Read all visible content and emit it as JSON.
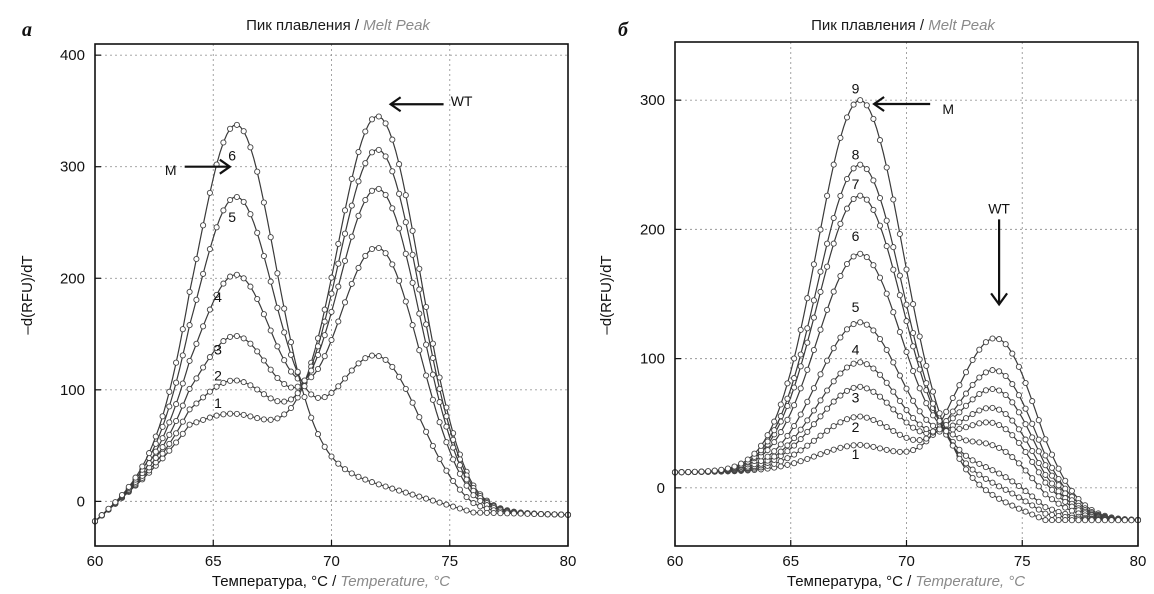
{
  "chart_data": [
    {
      "panel_label": "a",
      "type": "line",
      "title": "Пик плавления",
      "title_secondary": "Melt Peak",
      "xlabel": "Температура, °C",
      "xlabel_secondary": "Temperature, °C",
      "ylabel": "–d(RFU)/dT",
      "xlim": [
        60,
        80
      ],
      "ylim": [
        -40,
        410
      ],
      "xticks": [
        60,
        65,
        70,
        75,
        80
      ],
      "yticks": [
        0,
        100,
        200,
        300,
        400
      ],
      "grid": true,
      "series": [
        {
          "label": "1",
          "peaks": [
            {
              "center": 66.0,
              "amp": 30,
              "sigma": 1.6
            },
            {
              "center": 72.0,
              "amp": 330,
              "sigma": 1.75
            }
          ]
        },
        {
          "label": "2",
          "peaks": [
            {
              "center": 66.0,
              "amp": 60,
              "sigma": 1.6
            },
            {
              "center": 72.0,
              "amp": 300,
              "sigma": 1.75
            }
          ]
        },
        {
          "label": "3",
          "peaks": [
            {
              "center": 66.0,
              "amp": 100,
              "sigma": 1.6
            },
            {
              "center": 72.0,
              "amp": 265,
              "sigma": 1.75
            }
          ]
        },
        {
          "label": "4",
          "peaks": [
            {
              "center": 66.0,
              "amp": 155,
              "sigma": 1.6
            },
            {
              "center": 72.0,
              "amp": 212,
              "sigma": 1.75
            }
          ]
        },
        {
          "label": "5",
          "peaks": [
            {
              "center": 66.0,
              "amp": 225,
              "sigma": 1.6
            },
            {
              "center": 72.0,
              "amp": 115,
              "sigma": 1.75
            }
          ]
        },
        {
          "label": "6",
          "peaks": [
            {
              "center": 66.0,
              "amp": 290,
              "sigma": 1.6
            },
            {
              "center": 72.0,
              "amp": 0,
              "sigma": 1.75
            }
          ]
        }
      ],
      "baseline": {
        "x_points": [
          60,
          64,
          68,
          72,
          76,
          80
        ],
        "y_points": [
          -18,
          55,
          40,
          15,
          -10,
          -12
        ]
      },
      "labels": [
        {
          "text": "1",
          "x": 65.2,
          "y": 88
        },
        {
          "text": "2",
          "x": 65.2,
          "y": 113
        },
        {
          "text": "3",
          "x": 65.2,
          "y": 136
        },
        {
          "text": "4",
          "x": 65.2,
          "y": 183
        },
        {
          "text": "5",
          "x": 65.8,
          "y": 255
        },
        {
          "text": "6",
          "x": 65.8,
          "y": 310
        }
      ],
      "annotations": [
        {
          "text": "M",
          "x": 63.2,
          "y": 298,
          "arrow_to": [
            65.7,
            300
          ],
          "direction": "right"
        },
        {
          "text": "WT",
          "x": 75.5,
          "y": 360,
          "arrow_to": [
            72.5,
            356
          ],
          "direction": "left"
        }
      ]
    },
    {
      "panel_label": "б",
      "type": "line",
      "title": "Пик плавления",
      "title_secondary": "Melt Peak",
      "xlabel": "Температура, °C",
      "xlabel_secondary": "Temperature, °C",
      "ylabel": "–d(RFU)/dT",
      "xlim": [
        60,
        80
      ],
      "ylim": [
        -45,
        345
      ],
      "xticks": [
        60,
        65,
        70,
        75,
        80
      ],
      "yticks": [
        0,
        100,
        200,
        300
      ],
      "grid": true,
      "series": [
        {
          "label": "1",
          "peaks": [
            {
              "center": 68.0,
              "amp": 20,
              "sigma": 1.85
            },
            {
              "center": 74.0,
              "amp": 125,
              "sigma": 1.7
            }
          ]
        },
        {
          "label": "2",
          "peaks": [
            {
              "center": 68.0,
              "amp": 42,
              "sigma": 1.85
            },
            {
              "center": 74.0,
              "amp": 100,
              "sigma": 1.7
            }
          ]
        },
        {
          "label": "3",
          "peaks": [
            {
              "center": 68.0,
              "amp": 65,
              "sigma": 1.85
            },
            {
              "center": 74.0,
              "amp": 85,
              "sigma": 1.7
            }
          ]
        },
        {
          "label": "4",
          "peaks": [
            {
              "center": 68.0,
              "amp": 84,
              "sigma": 1.85
            },
            {
              "center": 74.0,
              "amp": 70,
              "sigma": 1.7
            }
          ]
        },
        {
          "label": "5",
          "peaks": [
            {
              "center": 68.0,
              "amp": 115,
              "sigma": 1.85
            },
            {
              "center": 74.0,
              "amp": 58,
              "sigma": 1.7
            }
          ]
        },
        {
          "label": "6",
          "peaks": [
            {
              "center": 68.0,
              "amp": 168,
              "sigma": 1.85
            },
            {
              "center": 74.0,
              "amp": 40,
              "sigma": 1.7
            }
          ]
        },
        {
          "label": "7",
          "peaks": [
            {
              "center": 68.0,
              "amp": 213,
              "sigma": 1.85
            },
            {
              "center": 74.0,
              "amp": 20,
              "sigma": 1.7
            }
          ]
        },
        {
          "label": "8",
          "peaks": [
            {
              "center": 68.0,
              "amp": 237,
              "sigma": 1.85
            },
            {
              "center": 74.0,
              "amp": 10,
              "sigma": 1.7
            }
          ]
        },
        {
          "label": "9",
          "peaks": [
            {
              "center": 68.0,
              "amp": 287,
              "sigma": 1.85
            },
            {
              "center": 74.0,
              "amp": 0,
              "sigma": 1.7
            }
          ]
        }
      ],
      "baseline": {
        "x_points": [
          60,
          64,
          68,
          72,
          76,
          80
        ],
        "y_points": [
          12,
          13,
          13,
          5,
          -25,
          -25
        ]
      },
      "labels": [
        {
          "text": "1",
          "x": 67.8,
          "y": 26
        },
        {
          "text": "2",
          "x": 67.8,
          "y": 47
        },
        {
          "text": "3",
          "x": 67.8,
          "y": 70
        },
        {
          "text": "4",
          "x": 67.8,
          "y": 107
        },
        {
          "text": "5",
          "x": 67.8,
          "y": 140
        },
        {
          "text": "6",
          "x": 67.8,
          "y": 195
        },
        {
          "text": "7",
          "x": 67.8,
          "y": 235
        },
        {
          "text": "8",
          "x": 67.8,
          "y": 258
        },
        {
          "text": "9",
          "x": 67.8,
          "y": 309
        }
      ],
      "annotations": [
        {
          "text": "M",
          "x": 71.8,
          "y": 294,
          "arrow_to": [
            68.6,
            297
          ],
          "direction": "left"
        },
        {
          "text": "WT",
          "x": 74.0,
          "y": 217,
          "arrow_to": [
            74.0,
            142
          ],
          "direction": "down"
        }
      ]
    }
  ]
}
